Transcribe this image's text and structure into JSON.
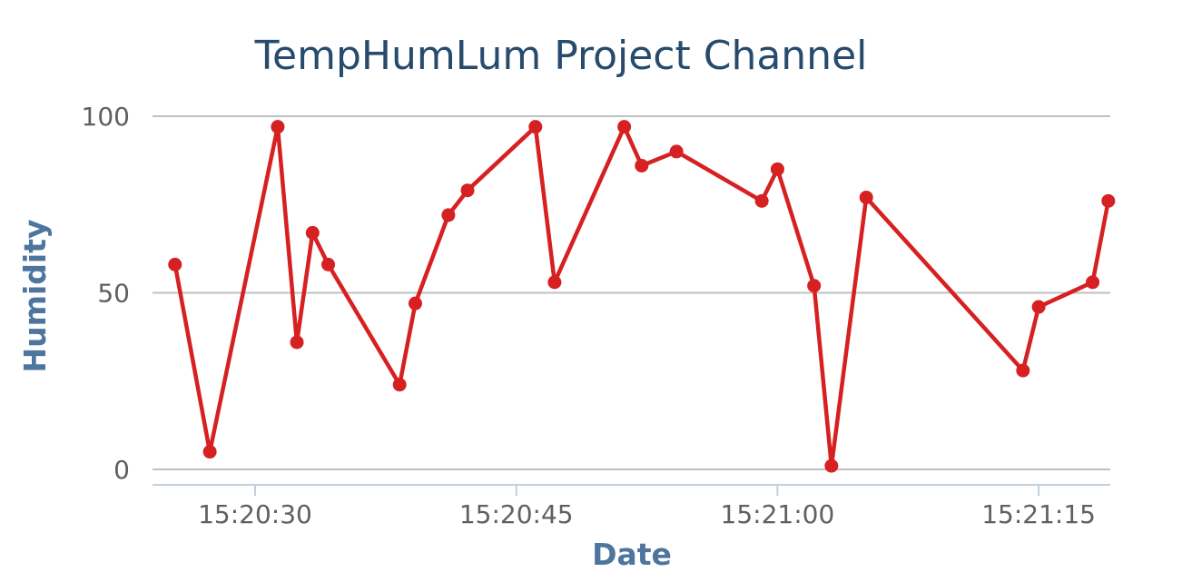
{
  "chart_data": {
    "type": "line",
    "title": "TempHumLum Project Channel",
    "xlabel": "Date",
    "ylabel": "Humidity",
    "grid": true,
    "legend": "none",
    "x_ticks": [
      "15:20:30",
      "15:20:45",
      "15:21:00",
      "15:21:15"
    ],
    "y_ticks": [
      "0",
      "50",
      "100"
    ],
    "xlim": [
      "15:20:25",
      "15:21:20"
    ],
    "ylim": [
      0,
      100
    ],
    "series": [
      {
        "x": [
          "15:20:25.4",
          "15:20:27.4",
          "15:20:31.3",
          "15:20:32.4",
          "15:20:33.3",
          "15:20:34.2",
          "15:20:38.3",
          "15:20:39.2",
          "15:20:41.1",
          "15:20:42.2",
          "15:20:46.1",
          "15:20:47.2",
          "15:20:51.2",
          "15:20:52.2",
          "15:20:54.2",
          "15:20:59.1",
          "15:20:60.0",
          "15:21:02.1",
          "15:21:03.1",
          "15:21:05.1",
          "15:21:14.1",
          "15:21:15.0",
          "15:21:18.1",
          "15:21:19.0"
        ],
        "values": [
          58,
          5,
          97,
          36,
          67,
          58,
          24,
          47,
          72,
          79,
          97,
          53,
          97,
          86,
          90,
          76,
          85,
          52,
          1,
          77,
          28,
          46,
          53,
          76
        ]
      }
    ],
    "colors": {
      "line": "#d62021",
      "title": "#274b6d",
      "axis_title": "#4d759e",
      "tick": "#606060",
      "grid": "#c0c0c0",
      "axis": "#c0d0e0"
    }
  }
}
